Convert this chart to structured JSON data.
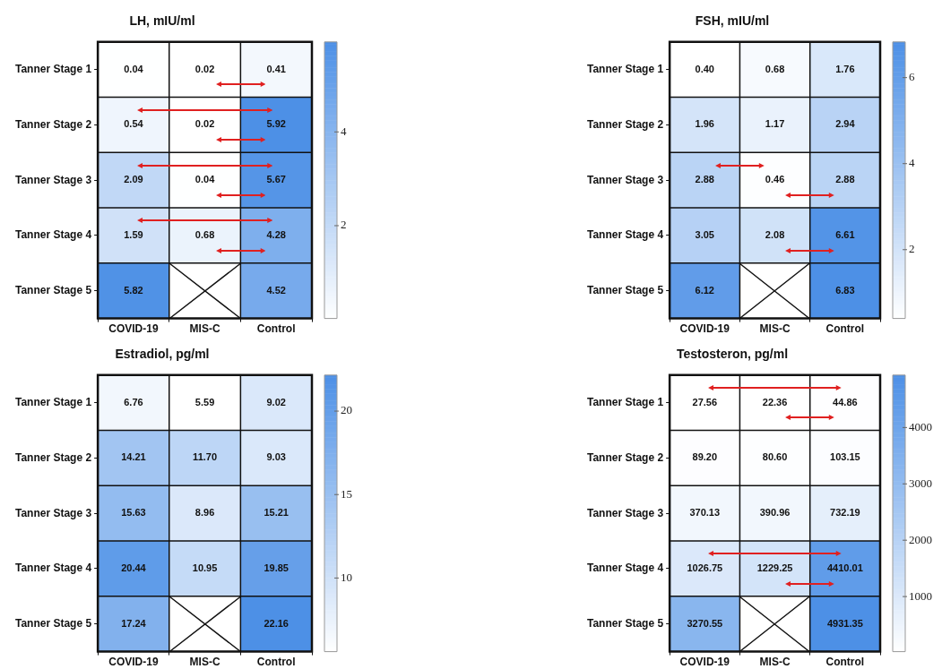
{
  "chart_data": [
    {
      "type": "heatmap",
      "title": "LH, mIU/ml",
      "categories": [
        "COVID-19",
        "MIS-C",
        "Control"
      ],
      "y_categories": [
        "Tanner Stage 1",
        "Tanner Stage 2",
        "Tanner Stage 3",
        "Tanner Stage 4",
        "Tanner Stage 5"
      ],
      "cells": [
        [
          0.04,
          0.02,
          0.41
        ],
        [
          0.54,
          0.02,
          5.92
        ],
        [
          2.09,
          0.04,
          5.67
        ],
        [
          1.59,
          0.68,
          4.28
        ],
        [
          5.82,
          null,
          4.52
        ]
      ],
      "cell_labels": [
        [
          "0.04",
          "0.02",
          "0.41"
        ],
        [
          "0.54",
          "0.02",
          "5.92"
        ],
        [
          "2.09",
          "0.04",
          "5.67"
        ],
        [
          "1.59",
          "0.68",
          "4.28"
        ],
        [
          "5.82",
          null,
          "4.52"
        ]
      ],
      "clim": [
        0.02,
        5.92
      ],
      "cticks": [
        2,
        4
      ]
    },
    {
      "type": "heatmap",
      "title": "FSH, mIU/ml",
      "categories": [
        "COVID-19",
        "MIS-C",
        "Control"
      ],
      "y_categories": [
        "Tanner Stage 1",
        "Tanner Stage 2",
        "Tanner Stage 3",
        "Tanner Stage 4",
        "Tanner Stage 5"
      ],
      "cells": [
        [
          0.4,
          0.68,
          1.76
        ],
        [
          1.96,
          1.17,
          2.94
        ],
        [
          2.88,
          0.46,
          2.88
        ],
        [
          3.05,
          2.08,
          6.61
        ],
        [
          6.12,
          null,
          6.83
        ]
      ],
      "cell_labels": [
        [
          "0.40",
          "0.68",
          "1.76"
        ],
        [
          "1.96",
          "1.17",
          "2.94"
        ],
        [
          "2.88",
          "0.46",
          "2.88"
        ],
        [
          "3.05",
          "2.08",
          "6.61"
        ],
        [
          "6.12",
          null,
          "6.83"
        ]
      ],
      "clim": [
        0.4,
        6.83
      ],
      "cticks": [
        2,
        4,
        6
      ]
    },
    {
      "type": "heatmap",
      "title": "Estradiol, pg/ml",
      "categories": [
        "COVID-19",
        "MIS-C",
        "Control"
      ],
      "y_categories": [
        "Tanner Stage 1",
        "Tanner Stage 2",
        "Tanner Stage 3",
        "Tanner Stage 4",
        "Tanner Stage 5"
      ],
      "cells": [
        [
          6.76,
          5.59,
          9.02
        ],
        [
          14.21,
          11.7,
          9.03
        ],
        [
          15.63,
          8.96,
          15.21
        ],
        [
          20.44,
          10.95,
          19.85
        ],
        [
          17.24,
          null,
          22.16
        ]
      ],
      "cell_labels": [
        [
          "6.76",
          "5.59",
          "9.02"
        ],
        [
          "14.21",
          "11.70",
          "9.03"
        ],
        [
          "15.63",
          "8.96",
          "15.21"
        ],
        [
          "20.44",
          "10.95",
          "19.85"
        ],
        [
          "17.24",
          null,
          "22.16"
        ]
      ],
      "clim": [
        5.59,
        22.16
      ],
      "cticks": [
        10,
        15,
        20
      ]
    },
    {
      "type": "heatmap",
      "title": "Testosteron, pg/ml",
      "categories": [
        "COVID-19",
        "MIS-C",
        "Control"
      ],
      "y_categories": [
        "Tanner Stage 1",
        "Tanner Stage 2",
        "Tanner Stage 3",
        "Tanner Stage 4",
        "Tanner Stage 5"
      ],
      "cells": [
        [
          27.56,
          22.36,
          44.86
        ],
        [
          89.2,
          80.6,
          103.15
        ],
        [
          370.13,
          390.96,
          732.19
        ],
        [
          1026.75,
          1229.25,
          4410.01
        ],
        [
          3270.55,
          null,
          4931.35
        ]
      ],
      "cell_labels": [
        [
          "27.56",
          "22.36",
          "44.86"
        ],
        [
          "89.20",
          "80.60",
          "103.15"
        ],
        [
          "370.13",
          "390.96",
          "732.19"
        ],
        [
          "1026.75",
          "1229.25",
          "4410.01"
        ],
        [
          "3270.55",
          null,
          "4931.35"
        ]
      ],
      "clim": [
        22.36,
        4931.35
      ],
      "cticks": [
        1000,
        2000,
        3000,
        4000
      ]
    }
  ]
}
